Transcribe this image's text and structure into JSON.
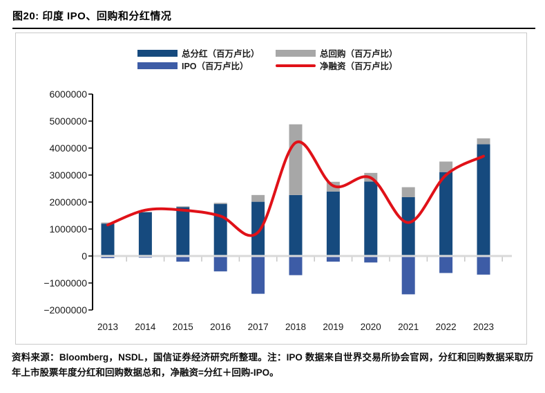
{
  "header": {
    "title": "图20: 印度 IPO、回购和分红情况"
  },
  "footer": {
    "note": "资料来源：Bloomberg，NSDL，国信证券经济研究所整理。注：IPO 数据来自世界交易所协会官网，分红和回购数据采取历年上市股票年度分红和回购数据总和，净融资=分红＋回购-IPO。"
  },
  "chart_data": {
    "type": "combo",
    "title": "",
    "categories": [
      "2013",
      "2014",
      "2015",
      "2016",
      "2017",
      "2018",
      "2019",
      "2020",
      "2021",
      "2022",
      "2023"
    ],
    "series": [
      {
        "name": "总分红（百万卢比）",
        "type": "bar",
        "stack": "s",
        "color": "#164a7e",
        "values": [
          1200000,
          1620000,
          1810000,
          1930000,
          2010000,
          2260000,
          2390000,
          2760000,
          2180000,
          3110000,
          4140000
        ]
      },
      {
        "name": "总回购（百万卢比）",
        "type": "bar",
        "stack": "s",
        "color": "#a7a7a7",
        "values": [
          40000,
          20000,
          30000,
          40000,
          250000,
          2620000,
          360000,
          320000,
          370000,
          390000,
          220000
        ]
      },
      {
        "name": "IPO（百万卢比）",
        "type": "bar",
        "stack": null,
        "color": "#3d5ca6",
        "values": [
          -80000,
          -60000,
          -210000,
          -570000,
          -1400000,
          -710000,
          -210000,
          -240000,
          -1420000,
          -630000,
          -690000
        ]
      },
      {
        "name": "净融资（百万卢比）",
        "type": "line",
        "stack": null,
        "color": "#e01118",
        "values": [
          1150000,
          1700000,
          1700000,
          1480000,
          880000,
          4200000,
          2600000,
          2900000,
          1240000,
          3000000,
          3700000
        ]
      }
    ],
    "ylim": [
      -2000000,
      6000000
    ],
    "yticks": [
      6000000,
      5000000,
      4000000,
      3000000,
      2000000,
      1000000,
      0,
      -1000000,
      -2000000
    ],
    "xlabel": "",
    "ylabel": "",
    "legend_position": "top-center",
    "grid": false,
    "axis_color": "#000000",
    "zero_line_color": "#d9d9d9",
    "tick_color": "#c6c6c6",
    "label_color": "#1a1a1a"
  }
}
